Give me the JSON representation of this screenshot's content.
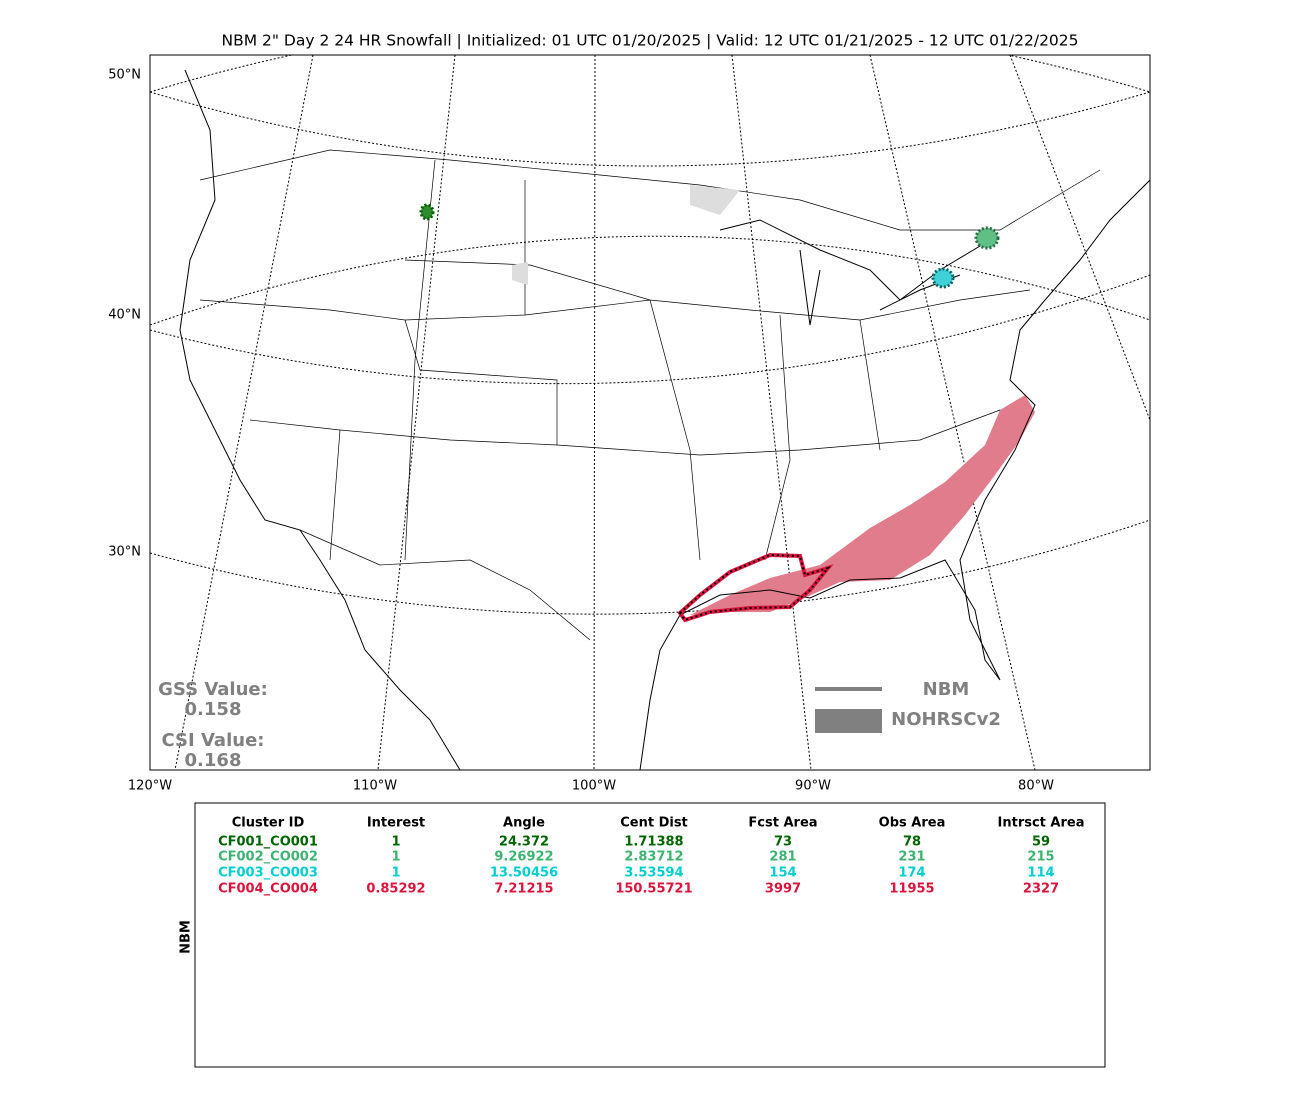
{
  "title": "NBM 2\" Day 2 24 HR Snowfall | Initialized: 01 UTC 01/20/2025 | Valid: 12 UTC 01/21/2025 - 12 UTC 01/22/2025",
  "map": {
    "lat_labels": [
      "50°N",
      "40°N",
      "30°N"
    ],
    "lon_labels": [
      "120°W",
      "110°W",
      "100°W",
      "90°W",
      "80°W"
    ],
    "scores": [
      {
        "label": "GSS Value:",
        "value": "0.158"
      },
      {
        "label": "CSI Value:",
        "value": "0.168"
      }
    ],
    "legend": [
      "NBM",
      "NOHRSCv2"
    ]
  },
  "table": {
    "side_label": "NBM",
    "headers": [
      "Cluster ID",
      "Interest",
      "Angle",
      "Cent Dist",
      "Fcst Area",
      "Obs Area",
      "Intrsct Area"
    ],
    "row_colors": [
      "#006400",
      "#3cb371",
      "#00ced1",
      "#dc143c"
    ],
    "rows": [
      [
        "CF001_CO001",
        "1",
        "24.372",
        "1.71388",
        "73",
        "78",
        "59"
      ],
      [
        "CF002_CO002",
        "1",
        "9.26922",
        "2.83712",
        "281",
        "231",
        "215"
      ],
      [
        "CF003_CO003",
        "1",
        "13.50456",
        "3.53594",
        "154",
        "174",
        "114"
      ],
      [
        "CF004_CO004",
        "0.85292",
        "7.21215",
        "150.55721",
        "3997",
        "11955",
        "2327"
      ]
    ]
  }
}
